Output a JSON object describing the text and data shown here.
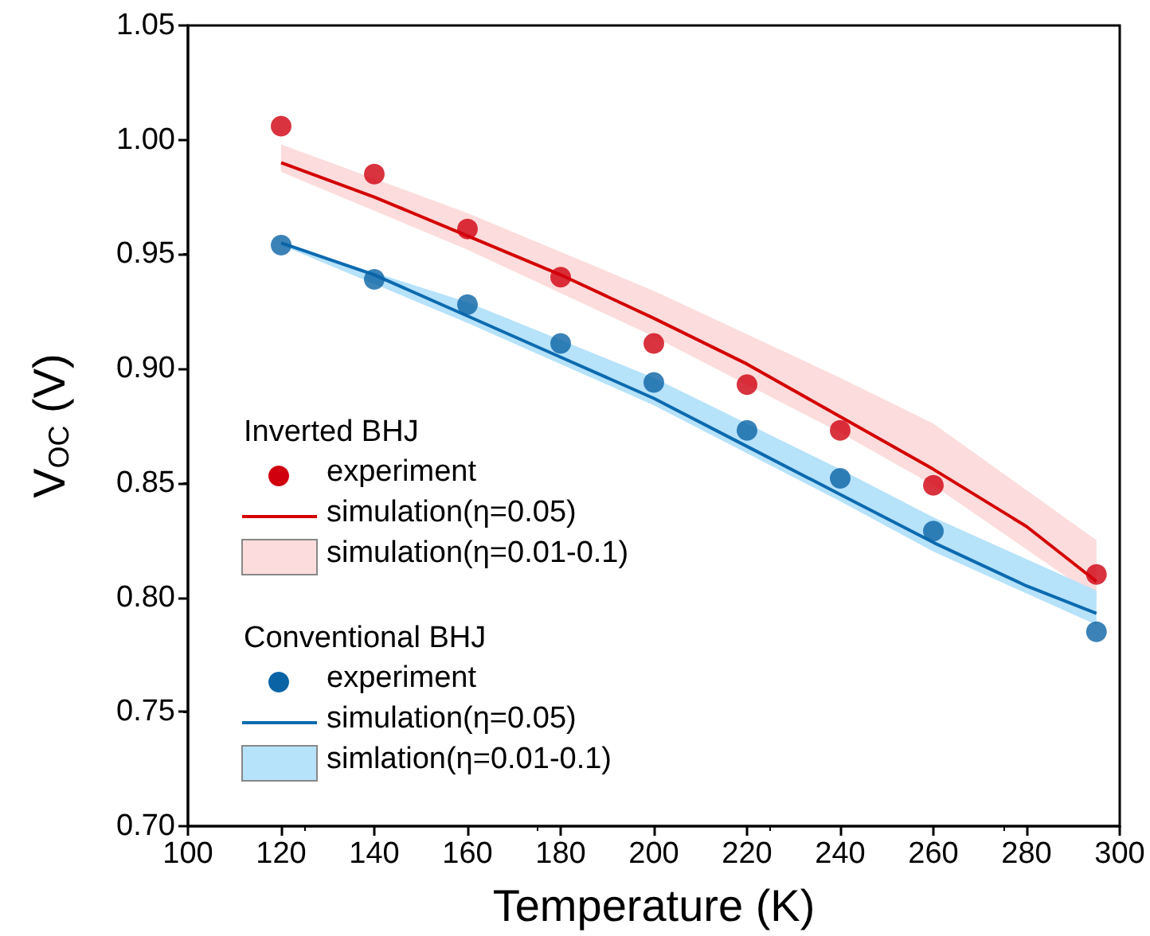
{
  "chart_data": {
    "type": "scatter",
    "xlabel": "Temperature (K)",
    "ylabel": "V$_{OC}$ (V)",
    "annotations": [
      "Inverted BHJ",
      "Conventional BHJ"
    ],
    "xlim": [
      100,
      300
    ],
    "xticks": [
      100,
      120,
      140,
      160,
      180,
      200,
      220,
      240,
      260,
      280,
      300
    ],
    "ylim": [
      0.7,
      1.05
    ],
    "yticks": [
      {
        "value": 0.7,
        "label": "0.70"
      },
      0.75,
      {
        "value": 0.8,
        "label": "0.80"
      },
      0.85,
      {
        "value": 0.9,
        "label": "0.90"
      },
      0.95,
      {
        "value": 1.0,
        "label": "1.00"
      },
      1.05
    ],
    "legend": "bottom left",
    "grid": false,
    "series": [
      {
        "name": "experiment",
        "marker": "circle",
        "color": "#d0000f",
        "x": [
          120,
          140,
          160,
          180,
          200,
          220,
          240,
          260,
          295
        ],
        "values": [
          1.006,
          0.985,
          0.961,
          0.94,
          0.911,
          0.893,
          0.873,
          0.849,
          0.81
        ]
      },
      {
        "name": "simulation(η=0.05)",
        "type": "line",
        "marker": "none",
        "color": "#d40000",
        "x": [
          120,
          140,
          160,
          180,
          200,
          220,
          240,
          260,
          280,
          295
        ],
        "values": [
          0.99,
          0.975,
          0.958,
          0.941,
          0.922,
          0.902,
          0.879,
          0.856,
          0.831,
          0.807
        ]
      },
      {
        "name": "simulation(η=0.01-0.1)",
        "type": "line",
        "color": "#fcdcdc",
        "x": [
          120,
          160,
          200,
          240,
          260,
          295
        ],
        "values": [
          null,
          null,
          null,
          null,
          null,
          null
        ],
        "upper": [
          0.998,
          0.968,
          0.934,
          0.896,
          0.876,
          0.825
        ],
        "lower": [
          0.986,
          0.952,
          0.914,
          0.872,
          0.849,
          0.8
        ]
      },
      {
        "name": "experiment",
        "marker": "circle",
        "color": "#0a63a5",
        "x": [
          120,
          140,
          160,
          180,
          200,
          220,
          240,
          260,
          295
        ],
        "values": [
          0.954,
          0.939,
          0.928,
          0.911,
          0.894,
          0.873,
          0.852,
          0.829,
          0.785
        ]
      },
      {
        "name": "simulation(η=0.05)",
        "type": "line",
        "marker": "none",
        "color": "#0c6aaf",
        "x": [
          120,
          140,
          160,
          180,
          200,
          220,
          240,
          260,
          280,
          295
        ],
        "values": [
          0.955,
          0.941,
          0.923,
          0.905,
          0.887,
          0.866,
          0.845,
          0.824,
          0.805,
          0.793
        ]
      },
      {
        "name": "simlation(η=0.01-0.1)",
        "type": "line",
        "color": "#b6e2fa",
        "x": [
          120,
          160,
          200,
          240,
          260,
          295
        ],
        "values": [
          null,
          null,
          null,
          null,
          null,
          null
        ],
        "upper": [
          0.955,
          0.929,
          0.896,
          0.856,
          0.835,
          0.803
        ],
        "lower": [
          0.954,
          0.92,
          0.884,
          0.842,
          0.82,
          0.788
        ]
      }
    ]
  }
}
